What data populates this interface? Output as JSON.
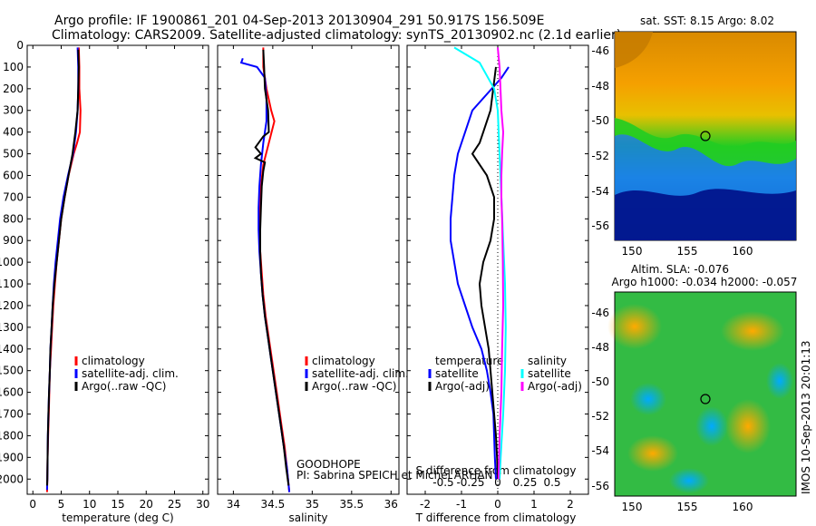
{
  "header": {
    "title_line1": "Argo profile: IF 1900861_201 04-Sep-2013 20130904_291 50.917S 156.509E",
    "title_line2": "Climatology: CARS2009. Satellite-adjusted climatology: synTS_20130902.nc (2.1d earlier)"
  },
  "footer": {
    "project": "GOODHOPE",
    "pi": "PI: Sabrina SPEICH et Michel ARHAN",
    "imos_stamp": "IMOS 10-Sep-2013 20:01:13"
  },
  "colors": {
    "climatology": "#ff0000",
    "satellite": "#0000ff",
    "argo": "#000000",
    "salinity_satellite": "#00ffff",
    "salinity_argo": "#ff00ff"
  },
  "chart_data": [
    {
      "type": "line",
      "panel": "temperature",
      "xlabel": "temperature (deg C)",
      "ylabel": "",
      "xlim": [
        -1,
        31
      ],
      "ylim": [
        2070,
        0
      ],
      "x_ticks": [
        0,
        5,
        10,
        15,
        20,
        25,
        30
      ],
      "y_ticks": [
        0,
        100,
        200,
        300,
        400,
        500,
        600,
        700,
        800,
        900,
        1000,
        1100,
        1200,
        1300,
        1400,
        1500,
        1600,
        1700,
        1800,
        1900,
        2000
      ],
      "legend": [
        "climatology",
        "satellite-adj. clim.",
        "Argo(..raw -QC)"
      ],
      "series": [
        {
          "name": "climatology",
          "color": "#ff0000",
          "points": [
            [
              8.1,
              10
            ],
            [
              8.2,
              100
            ],
            [
              8.2,
              200
            ],
            [
              8.4,
              300
            ],
            [
              8.3,
              400
            ],
            [
              7.8,
              450
            ],
            [
              7.2,
              500
            ],
            [
              6.3,
              600
            ],
            [
              5.6,
              700
            ],
            [
              5.0,
              800
            ],
            [
              4.6,
              900
            ],
            [
              4.2,
              1000
            ],
            [
              3.9,
              1100
            ],
            [
              3.6,
              1200
            ],
            [
              3.4,
              1300
            ],
            [
              3.2,
              1400
            ],
            [
              3.0,
              1500
            ],
            [
              2.9,
              1600
            ],
            [
              2.8,
              1700
            ],
            [
              2.7,
              1800
            ],
            [
              2.6,
              1900
            ],
            [
              2.55,
              2000
            ],
            [
              2.5,
              2060
            ]
          ]
        },
        {
          "name": "satellite-adj. clim.",
          "color": "#0000ff",
          "points": [
            [
              7.9,
              10
            ],
            [
              8.0,
              100
            ],
            [
              8.0,
              200
            ],
            [
              7.9,
              300
            ],
            [
              7.6,
              400
            ],
            [
              7.1,
              500
            ],
            [
              6.2,
              600
            ],
            [
              5.4,
              700
            ],
            [
              4.8,
              800
            ],
            [
              4.4,
              900
            ],
            [
              4.0,
              1000
            ],
            [
              3.7,
              1100
            ],
            [
              3.5,
              1200
            ],
            [
              3.3,
              1300
            ],
            [
              3.1,
              1400
            ],
            [
              3.0,
              1500
            ],
            [
              2.85,
              1600
            ],
            [
              2.75,
              1700
            ],
            [
              2.65,
              1800
            ],
            [
              2.6,
              1900
            ],
            [
              2.55,
              2000
            ],
            [
              2.5,
              2050
            ]
          ]
        },
        {
          "name": "Argo(..raw -QC)",
          "color": "#000000",
          "points": [
            [
              8.0,
              20
            ],
            [
              8.1,
              100
            ],
            [
              8.0,
              200
            ],
            [
              7.9,
              300
            ],
            [
              7.5,
              400
            ],
            [
              7.0,
              500
            ],
            [
              6.3,
              600
            ],
            [
              5.6,
              700
            ],
            [
              5.0,
              800
            ],
            [
              4.6,
              900
            ],
            [
              4.2,
              1000
            ],
            [
              3.8,
              1100
            ],
            [
              3.5,
              1200
            ],
            [
              3.3,
              1300
            ],
            [
              3.1,
              1400
            ],
            [
              3.0,
              1500
            ],
            [
              2.85,
              1600
            ],
            [
              2.75,
              1700
            ],
            [
              2.65,
              1800
            ],
            [
              2.6,
              1900
            ],
            [
              2.55,
              2000
            ],
            [
              2.5,
              2030
            ]
          ]
        }
      ]
    },
    {
      "type": "line",
      "panel": "salinity",
      "xlabel": "salinity",
      "ylabel": "",
      "xlim": [
        33.8,
        36.1
      ],
      "ylim": [
        2070,
        0
      ],
      "x_ticks": [
        34,
        34.5,
        35,
        35.5,
        36
      ],
      "legend": [
        "climatology",
        "satellite-adj. clim.",
        "Argo(..raw -QC)"
      ],
      "series": [
        {
          "name": "climatology",
          "color": "#ff0000",
          "points": [
            [
              34.38,
              10
            ],
            [
              34.38,
              100
            ],
            [
              34.42,
              200
            ],
            [
              34.48,
              300
            ],
            [
              34.52,
              350
            ],
            [
              34.45,
              450
            ],
            [
              34.38,
              550
            ],
            [
              34.35,
              650
            ],
            [
              34.34,
              750
            ],
            [
              34.33,
              850
            ],
            [
              34.34,
              950
            ],
            [
              34.36,
              1050
            ],
            [
              34.38,
              1150
            ],
            [
              34.41,
              1250
            ],
            [
              34.45,
              1350
            ],
            [
              34.49,
              1450
            ],
            [
              34.53,
              1550
            ],
            [
              34.57,
              1650
            ],
            [
              34.61,
              1750
            ],
            [
              34.65,
              1850
            ],
            [
              34.68,
              1950
            ],
            [
              34.71,
              2060
            ]
          ]
        },
        {
          "name": "satellite-adj. clim.",
          "color": "#0000ff",
          "points": [
            [
              34.12,
              60
            ],
            [
              34.1,
              80
            ],
            [
              34.3,
              100
            ],
            [
              34.4,
              150
            ],
            [
              34.42,
              250
            ],
            [
              34.42,
              350
            ],
            [
              34.38,
              450
            ],
            [
              34.35,
              550
            ],
            [
              34.33,
              650
            ],
            [
              34.32,
              750
            ],
            [
              34.32,
              850
            ],
            [
              34.33,
              950
            ],
            [
              34.35,
              1050
            ],
            [
              34.37,
              1150
            ],
            [
              34.4,
              1250
            ],
            [
              34.44,
              1350
            ],
            [
              34.48,
              1450
            ],
            [
              34.52,
              1550
            ],
            [
              34.56,
              1650
            ],
            [
              34.6,
              1750
            ],
            [
              34.64,
              1850
            ],
            [
              34.68,
              1950
            ],
            [
              34.71,
              2060
            ]
          ]
        },
        {
          "name": "Argo(..raw -QC)",
          "color": "#000000",
          "points": [
            [
              34.38,
              20
            ],
            [
              34.39,
              100
            ],
            [
              34.4,
              200
            ],
            [
              34.44,
              300
            ],
            [
              34.45,
              400
            ],
            [
              34.38,
              420
            ],
            [
              34.28,
              470
            ],
            [
              34.35,
              500
            ],
            [
              34.28,
              520
            ],
            [
              34.4,
              540
            ],
            [
              34.38,
              580
            ],
            [
              34.36,
              650
            ],
            [
              34.35,
              750
            ],
            [
              34.34,
              850
            ],
            [
              34.34,
              950
            ],
            [
              34.35,
              1050
            ],
            [
              34.37,
              1150
            ],
            [
              34.4,
              1250
            ],
            [
              34.44,
              1350
            ],
            [
              34.48,
              1450
            ],
            [
              34.52,
              1550
            ],
            [
              34.56,
              1650
            ],
            [
              34.6,
              1750
            ],
            [
              34.64,
              1850
            ],
            [
              34.67,
              1950
            ],
            [
              34.7,
              2030
            ]
          ]
        }
      ]
    },
    {
      "type": "line",
      "panel": "difference",
      "xlabel": "T difference from climatology",
      "xlabel_top": "S difference from climatology",
      "xlim": [
        -2.5,
        2.5
      ],
      "ylim": [
        2070,
        0
      ],
      "x_ticks": [
        -2,
        -1,
        0,
        1,
        2
      ],
      "x_ticks_top": [
        "-0.5",
        "-0.25",
        "0",
        "0.25",
        "0.5"
      ],
      "legend_temperature_title": "temperature",
      "legend_salinity_title": "salinity",
      "legend": [
        "satellite",
        "Argo(-adj)",
        "satellite",
        "Argo(-adj)"
      ],
      "series": [
        {
          "name": "satellite",
          "group": "temperature",
          "color": "#0000ff",
          "points": [
            [
              0.3,
              100
            ],
            [
              0.1,
              150
            ],
            [
              -0.7,
              300
            ],
            [
              -0.9,
              400
            ],
            [
              -1.1,
              500
            ],
            [
              -1.2,
              600
            ],
            [
              -1.25,
              700
            ],
            [
              -1.3,
              800
            ],
            [
              -1.3,
              900
            ],
            [
              -1.2,
              1000
            ],
            [
              -1.1,
              1100
            ],
            [
              -0.9,
              1200
            ],
            [
              -0.7,
              1300
            ],
            [
              -0.45,
              1400
            ],
            [
              -0.3,
              1500
            ],
            [
              -0.2,
              1600
            ],
            [
              -0.12,
              1700
            ],
            [
              -0.1,
              1800
            ],
            [
              -0.08,
              1900
            ],
            [
              -0.05,
              2000
            ]
          ]
        },
        {
          "name": "Argo(-adj)",
          "group": "temperature",
          "color": "#000000",
          "points": [
            [
              -0.05,
              100
            ],
            [
              -0.2,
              300
            ],
            [
              -0.4,
              400
            ],
            [
              -0.5,
              450
            ],
            [
              -0.7,
              500
            ],
            [
              -0.3,
              600
            ],
            [
              -0.1,
              700
            ],
            [
              -0.1,
              800
            ],
            [
              -0.2,
              900
            ],
            [
              -0.4,
              1000
            ],
            [
              -0.5,
              1100
            ],
            [
              -0.45,
              1200
            ],
            [
              -0.35,
              1300
            ],
            [
              -0.25,
              1400
            ],
            [
              -0.2,
              1500
            ],
            [
              -0.15,
              1600
            ],
            [
              -0.1,
              1700
            ],
            [
              -0.05,
              1800
            ],
            [
              -0.02,
              1900
            ],
            [
              0.0,
              2000
            ]
          ]
        },
        {
          "name": "satellite",
          "group": "salinity",
          "color": "#00ffff",
          "points": [
            [
              -1.2,
              10
            ],
            [
              -0.5,
              80
            ],
            [
              -0.1,
              200
            ],
            [
              0.0,
              300
            ],
            [
              0.05,
              500
            ],
            [
              0.1,
              700
            ],
            [
              0.15,
              900
            ],
            [
              0.2,
              1100
            ],
            [
              0.22,
              1300
            ],
            [
              0.2,
              1500
            ],
            [
              0.15,
              1700
            ],
            [
              0.08,
              1900
            ],
            [
              0.05,
              2000
            ]
          ]
        },
        {
          "name": "Argo(-adj)",
          "group": "salinity",
          "color": "#ff00ff",
          "points": [
            [
              0.0,
              10
            ],
            [
              0.05,
              100
            ],
            [
              0.1,
              300
            ],
            [
              0.15,
              400
            ],
            [
              0.12,
              500
            ],
            [
              0.1,
              600
            ],
            [
              0.1,
              700
            ],
            [
              0.12,
              800
            ],
            [
              0.14,
              1000
            ],
            [
              0.15,
              1200
            ],
            [
              0.12,
              1400
            ],
            [
              0.1,
              1600
            ],
            [
              0.05,
              1800
            ],
            [
              0.02,
              2000
            ]
          ]
        }
      ]
    },
    {
      "type": "heatmap",
      "panel": "sst_map",
      "title": "sat. SST: 8.15  Argo: 8.02",
      "x_ticks": [
        150,
        155,
        160
      ],
      "y_ticks": [
        -46,
        -48,
        -50,
        -52,
        -54,
        -56
      ],
      "xlim": [
        148.5,
        164.5
      ],
      "ylim": [
        -56.8,
        -45.2
      ],
      "float_position": {
        "lon": 156.509,
        "lat": -50.917
      }
    },
    {
      "type": "heatmap",
      "panel": "sla_map",
      "title_line1": "Altim. SLA: -0.076",
      "title_line2": "Argo h1000: -0.034 h2000: -0.057",
      "x_ticks": [
        150,
        155,
        160
      ],
      "y_ticks": [
        -46,
        -48,
        -50,
        -52,
        -54,
        -56
      ],
      "xlim": [
        148.5,
        164.5
      ],
      "ylim": [
        -56.8,
        -45.2
      ],
      "float_position": {
        "lon": 156.509,
        "lat": -50.917
      }
    }
  ]
}
